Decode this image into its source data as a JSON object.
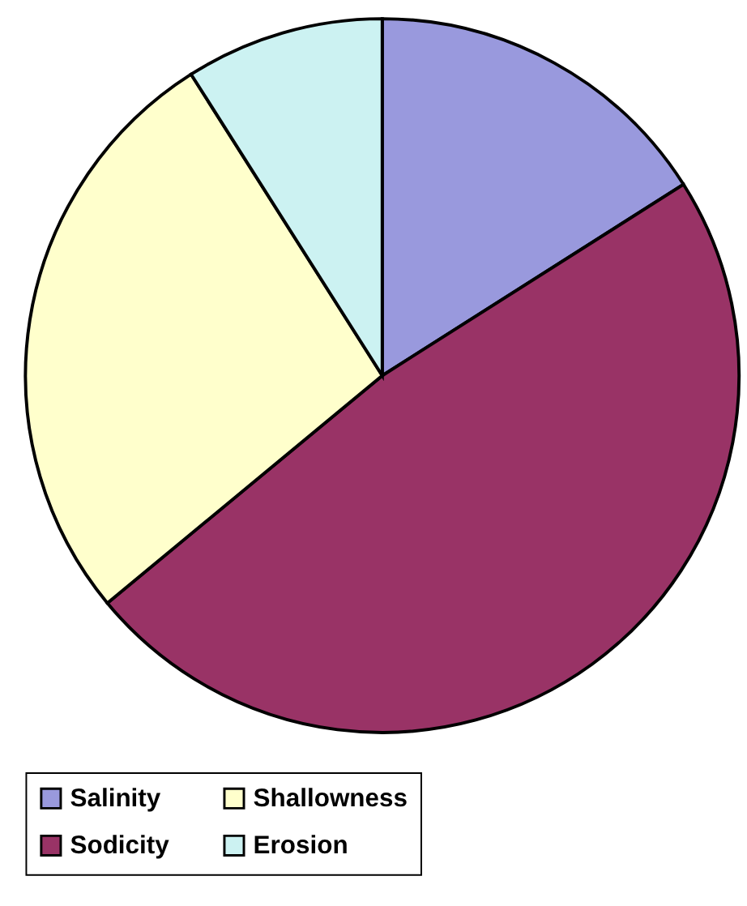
{
  "chart_data": {
    "type": "pie",
    "categories": [
      "Salinity",
      "Sodicity",
      "Shallowness",
      "Erosion"
    ],
    "values": [
      16,
      48,
      27,
      9
    ],
    "colors": [
      "#9999dd",
      "#993366",
      "#ffffcc",
      "#ccf2f2"
    ],
    "legend": "bottom"
  }
}
